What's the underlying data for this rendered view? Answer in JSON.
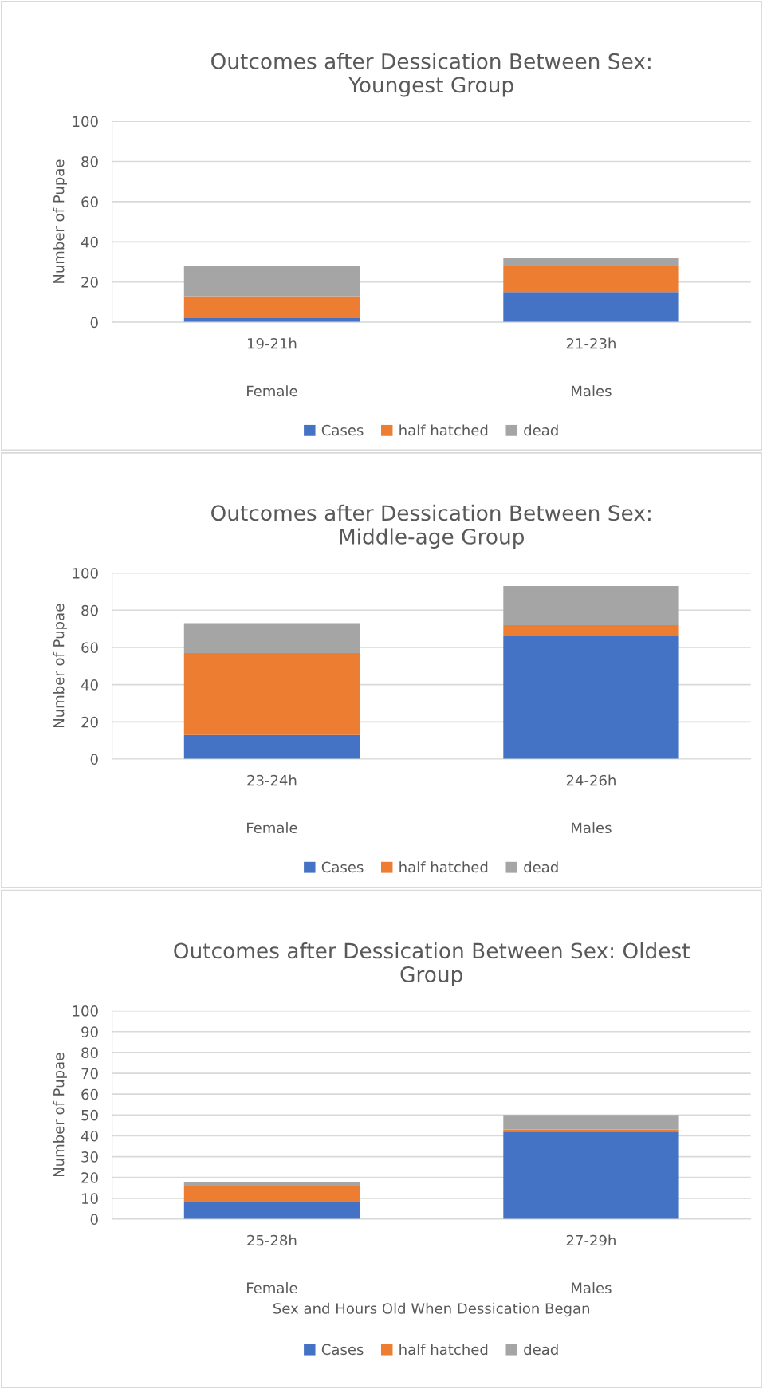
{
  "chart_data": [
    {
      "type": "bar",
      "stacked": true,
      "title": "Outcomes after Dessication Between Sex:\nYoungest Group",
      "ylabel": "Number of Pupae",
      "categories": [
        "19-21h\n\nFemale",
        "21-23h\n\nMales"
      ],
      "ylim": [
        0,
        100
      ],
      "yticks": [
        0,
        20,
        40,
        60,
        80,
        100
      ],
      "grid": "y",
      "legend": "bottom",
      "series": [
        {
          "name": "Cases",
          "color": "#4472c4",
          "values": [
            2,
            15
          ]
        },
        {
          "name": "half hatched",
          "color": "#ed7d31",
          "values": [
            11,
            13
          ]
        },
        {
          "name": "dead",
          "color": "#a5a5a5",
          "values": [
            15,
            4
          ]
        }
      ]
    },
    {
      "type": "bar",
      "stacked": true,
      "title": "Outcomes after Dessication Between Sex:\nMiddle-age Group",
      "ylabel": "Number of Pupae",
      "categories": [
        "23-24h\n\nFemale",
        "24-26h\n\nMales"
      ],
      "ylim": [
        0,
        100
      ],
      "yticks": [
        0,
        20,
        40,
        60,
        80,
        100
      ],
      "grid": "y",
      "legend": "bottom",
      "series": [
        {
          "name": "Cases",
          "color": "#4472c4",
          "values": [
            13,
            66
          ]
        },
        {
          "name": "half hatched",
          "color": "#ed7d31",
          "values": [
            44,
            6
          ]
        },
        {
          "name": "dead",
          "color": "#a5a5a5",
          "values": [
            16,
            21
          ]
        }
      ]
    },
    {
      "type": "bar",
      "stacked": true,
      "title": "Outcomes after Dessication Between Sex: Oldest\nGroup",
      "ylabel": "Number of Pupae",
      "xlabel": "Sex and Hours Old When Dessication Began",
      "categories": [
        "25-28h\n\nFemale",
        "27-29h\n\nMales"
      ],
      "ylim": [
        0,
        100
      ],
      "yticks": [
        0,
        10,
        20,
        30,
        40,
        50,
        60,
        70,
        80,
        90,
        100
      ],
      "grid": "y",
      "legend": "bottom",
      "series": [
        {
          "name": "Cases",
          "color": "#4472c4",
          "values": [
            8,
            42
          ]
        },
        {
          "name": "half hatched",
          "color": "#ed7d31",
          "values": [
            8,
            1
          ]
        },
        {
          "name": "dead",
          "color": "#a5a5a5",
          "values": [
            2,
            7
          ]
        }
      ]
    }
  ]
}
